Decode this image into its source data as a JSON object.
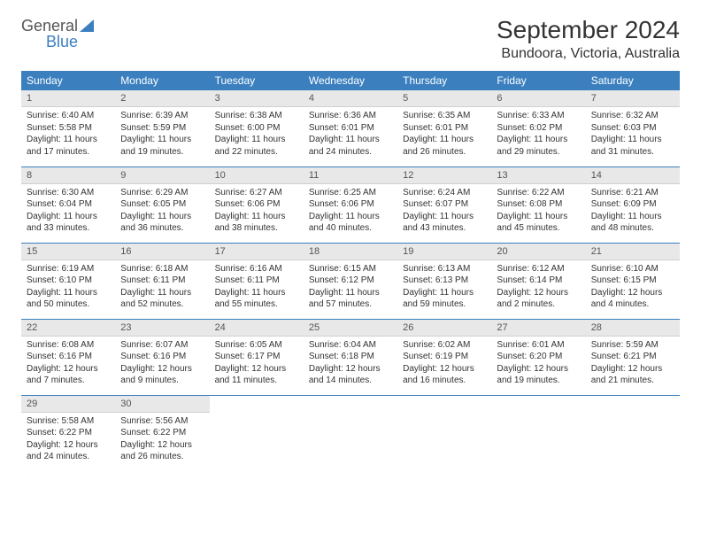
{
  "logo": {
    "top": "General",
    "bottom": "Blue"
  },
  "title": "September 2024",
  "location": "Bundoora, Victoria, Australia",
  "colors": {
    "header_bg": "#3b7fbf",
    "header_text": "#ffffff",
    "daynum_bg": "#e8e8e8",
    "border": "#3b7fbf",
    "body_text": "#333333",
    "logo_gray": "#555555",
    "logo_blue": "#3b7fbf",
    "page_bg": "#ffffff"
  },
  "columns": [
    "Sunday",
    "Monday",
    "Tuesday",
    "Wednesday",
    "Thursday",
    "Friday",
    "Saturday"
  ],
  "weeks": [
    [
      {
        "n": "1",
        "sr": "Sunrise: 6:40 AM",
        "ss": "Sunset: 5:58 PM",
        "d1": "Daylight: 11 hours",
        "d2": "and 17 minutes."
      },
      {
        "n": "2",
        "sr": "Sunrise: 6:39 AM",
        "ss": "Sunset: 5:59 PM",
        "d1": "Daylight: 11 hours",
        "d2": "and 19 minutes."
      },
      {
        "n": "3",
        "sr": "Sunrise: 6:38 AM",
        "ss": "Sunset: 6:00 PM",
        "d1": "Daylight: 11 hours",
        "d2": "and 22 minutes."
      },
      {
        "n": "4",
        "sr": "Sunrise: 6:36 AM",
        "ss": "Sunset: 6:01 PM",
        "d1": "Daylight: 11 hours",
        "d2": "and 24 minutes."
      },
      {
        "n": "5",
        "sr": "Sunrise: 6:35 AM",
        "ss": "Sunset: 6:01 PM",
        "d1": "Daylight: 11 hours",
        "d2": "and 26 minutes."
      },
      {
        "n": "6",
        "sr": "Sunrise: 6:33 AM",
        "ss": "Sunset: 6:02 PM",
        "d1": "Daylight: 11 hours",
        "d2": "and 29 minutes."
      },
      {
        "n": "7",
        "sr": "Sunrise: 6:32 AM",
        "ss": "Sunset: 6:03 PM",
        "d1": "Daylight: 11 hours",
        "d2": "and 31 minutes."
      }
    ],
    [
      {
        "n": "8",
        "sr": "Sunrise: 6:30 AM",
        "ss": "Sunset: 6:04 PM",
        "d1": "Daylight: 11 hours",
        "d2": "and 33 minutes."
      },
      {
        "n": "9",
        "sr": "Sunrise: 6:29 AM",
        "ss": "Sunset: 6:05 PM",
        "d1": "Daylight: 11 hours",
        "d2": "and 36 minutes."
      },
      {
        "n": "10",
        "sr": "Sunrise: 6:27 AM",
        "ss": "Sunset: 6:06 PM",
        "d1": "Daylight: 11 hours",
        "d2": "and 38 minutes."
      },
      {
        "n": "11",
        "sr": "Sunrise: 6:25 AM",
        "ss": "Sunset: 6:06 PM",
        "d1": "Daylight: 11 hours",
        "d2": "and 40 minutes."
      },
      {
        "n": "12",
        "sr": "Sunrise: 6:24 AM",
        "ss": "Sunset: 6:07 PM",
        "d1": "Daylight: 11 hours",
        "d2": "and 43 minutes."
      },
      {
        "n": "13",
        "sr": "Sunrise: 6:22 AM",
        "ss": "Sunset: 6:08 PM",
        "d1": "Daylight: 11 hours",
        "d2": "and 45 minutes."
      },
      {
        "n": "14",
        "sr": "Sunrise: 6:21 AM",
        "ss": "Sunset: 6:09 PM",
        "d1": "Daylight: 11 hours",
        "d2": "and 48 minutes."
      }
    ],
    [
      {
        "n": "15",
        "sr": "Sunrise: 6:19 AM",
        "ss": "Sunset: 6:10 PM",
        "d1": "Daylight: 11 hours",
        "d2": "and 50 minutes."
      },
      {
        "n": "16",
        "sr": "Sunrise: 6:18 AM",
        "ss": "Sunset: 6:11 PM",
        "d1": "Daylight: 11 hours",
        "d2": "and 52 minutes."
      },
      {
        "n": "17",
        "sr": "Sunrise: 6:16 AM",
        "ss": "Sunset: 6:11 PM",
        "d1": "Daylight: 11 hours",
        "d2": "and 55 minutes."
      },
      {
        "n": "18",
        "sr": "Sunrise: 6:15 AM",
        "ss": "Sunset: 6:12 PM",
        "d1": "Daylight: 11 hours",
        "d2": "and 57 minutes."
      },
      {
        "n": "19",
        "sr": "Sunrise: 6:13 AM",
        "ss": "Sunset: 6:13 PM",
        "d1": "Daylight: 11 hours",
        "d2": "and 59 minutes."
      },
      {
        "n": "20",
        "sr": "Sunrise: 6:12 AM",
        "ss": "Sunset: 6:14 PM",
        "d1": "Daylight: 12 hours",
        "d2": "and 2 minutes."
      },
      {
        "n": "21",
        "sr": "Sunrise: 6:10 AM",
        "ss": "Sunset: 6:15 PM",
        "d1": "Daylight: 12 hours",
        "d2": "and 4 minutes."
      }
    ],
    [
      {
        "n": "22",
        "sr": "Sunrise: 6:08 AM",
        "ss": "Sunset: 6:16 PM",
        "d1": "Daylight: 12 hours",
        "d2": "and 7 minutes."
      },
      {
        "n": "23",
        "sr": "Sunrise: 6:07 AM",
        "ss": "Sunset: 6:16 PM",
        "d1": "Daylight: 12 hours",
        "d2": "and 9 minutes."
      },
      {
        "n": "24",
        "sr": "Sunrise: 6:05 AM",
        "ss": "Sunset: 6:17 PM",
        "d1": "Daylight: 12 hours",
        "d2": "and 11 minutes."
      },
      {
        "n": "25",
        "sr": "Sunrise: 6:04 AM",
        "ss": "Sunset: 6:18 PM",
        "d1": "Daylight: 12 hours",
        "d2": "and 14 minutes."
      },
      {
        "n": "26",
        "sr": "Sunrise: 6:02 AM",
        "ss": "Sunset: 6:19 PM",
        "d1": "Daylight: 12 hours",
        "d2": "and 16 minutes."
      },
      {
        "n": "27",
        "sr": "Sunrise: 6:01 AM",
        "ss": "Sunset: 6:20 PM",
        "d1": "Daylight: 12 hours",
        "d2": "and 19 minutes."
      },
      {
        "n": "28",
        "sr": "Sunrise: 5:59 AM",
        "ss": "Sunset: 6:21 PM",
        "d1": "Daylight: 12 hours",
        "d2": "and 21 minutes."
      }
    ],
    [
      {
        "n": "29",
        "sr": "Sunrise: 5:58 AM",
        "ss": "Sunset: 6:22 PM",
        "d1": "Daylight: 12 hours",
        "d2": "and 24 minutes."
      },
      {
        "n": "30",
        "sr": "Sunrise: 5:56 AM",
        "ss": "Sunset: 6:22 PM",
        "d1": "Daylight: 12 hours",
        "d2": "and 26 minutes."
      },
      null,
      null,
      null,
      null,
      null
    ]
  ]
}
